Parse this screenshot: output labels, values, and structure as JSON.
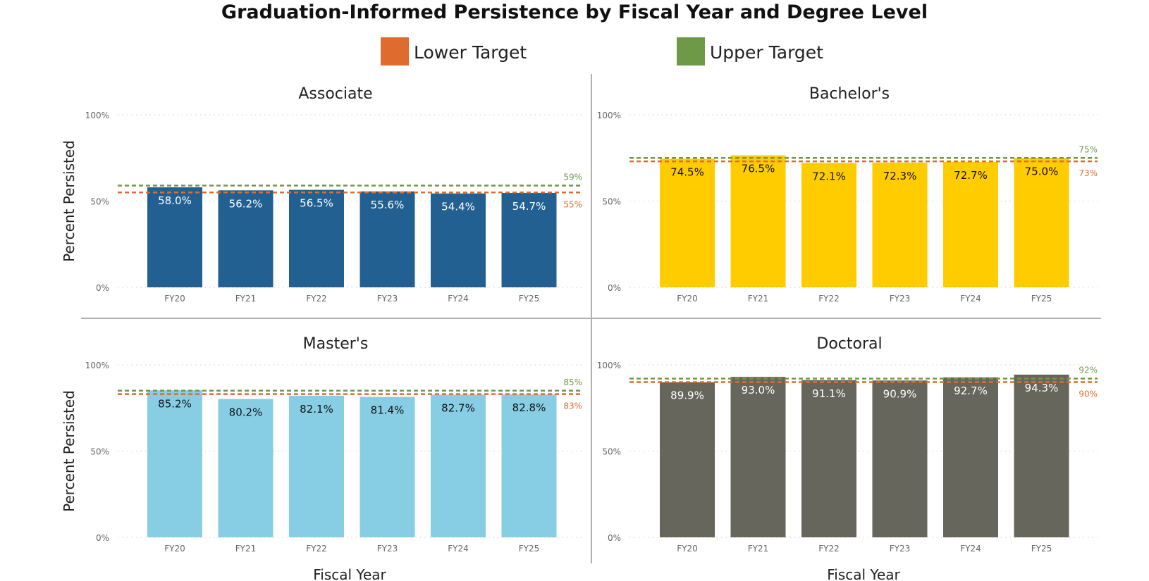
{
  "chart_data": [
    {
      "type": "bar",
      "title": "Associate",
      "categories": [
        "FY20",
        "FY21",
        "FY22",
        "FY23",
        "FY24",
        "FY25"
      ],
      "values": [
        58.0,
        56.2,
        56.5,
        55.6,
        54.4,
        54.7
      ],
      "labels": [
        "58.0%",
        "56.2%",
        "56.5%",
        "55.6%",
        "54.4%",
        "54.7%"
      ],
      "bar_color": "#236092",
      "label_color": "#ffffff",
      "lower_target": 55,
      "upper_target": 59,
      "lower_label": "55%",
      "upper_label": "59%",
      "ylabel": "Percent Persisted",
      "xlabel": "",
      "ylim": [
        0,
        100
      ],
      "yticks": [
        "0%",
        "50%",
        "100%"
      ],
      "grid": true
    },
    {
      "type": "bar",
      "title": "Bachelor's",
      "categories": [
        "FY20",
        "FY21",
        "FY22",
        "FY23",
        "FY24",
        "FY25"
      ],
      "values": [
        74.5,
        76.5,
        72.1,
        72.3,
        72.7,
        75.0
      ],
      "labels": [
        "74.5%",
        "76.5%",
        "72.1%",
        "72.3%",
        "72.7%",
        "75.0%"
      ],
      "bar_color": "#FFCC00",
      "label_color": "#111111",
      "lower_target": 73,
      "upper_target": 75,
      "lower_label": "73%",
      "upper_label": "75%",
      "ylabel": "",
      "xlabel": "",
      "ylim": [
        0,
        100
      ],
      "yticks": [
        "0%",
        "50%",
        "100%"
      ],
      "grid": true
    },
    {
      "type": "bar",
      "title": "Master's",
      "categories": [
        "FY20",
        "FY21",
        "FY22",
        "FY23",
        "FY24",
        "FY25"
      ],
      "values": [
        85.2,
        80.2,
        82.1,
        81.4,
        82.7,
        82.8
      ],
      "labels": [
        "85.2%",
        "80.2%",
        "82.1%",
        "81.4%",
        "82.7%",
        "82.8%"
      ],
      "bar_color": "#87CEE4",
      "label_color": "#111111",
      "lower_target": 83,
      "upper_target": 85,
      "lower_label": "83%",
      "upper_label": "85%",
      "ylabel": "Percent Persisted",
      "xlabel": "Fiscal Year",
      "ylim": [
        0,
        100
      ],
      "yticks": [
        "0%",
        "50%",
        "100%"
      ],
      "grid": true
    },
    {
      "type": "bar",
      "title": "Doctoral",
      "categories": [
        "FY20",
        "FY21",
        "FY22",
        "FY23",
        "FY24",
        "FY25"
      ],
      "values": [
        89.9,
        93.0,
        91.1,
        90.9,
        92.7,
        94.3
      ],
      "labels": [
        "89.9%",
        "93.0%",
        "91.1%",
        "90.9%",
        "92.7%",
        "94.3%"
      ],
      "bar_color": "#66665C",
      "label_color": "#ffffff",
      "lower_target": 90,
      "upper_target": 92,
      "lower_label": "90%",
      "upper_label": "92%",
      "ylabel": "",
      "xlabel": "Fiscal Year",
      "ylim": [
        0,
        100
      ],
      "yticks": [
        "0%",
        "50%",
        "100%"
      ],
      "grid": true
    }
  ],
  "title": "Graduation-Informed Persistence by Fiscal Year and Degree Level",
  "legend": {
    "placement": "top-center",
    "items": [
      {
        "label": "Lower Target",
        "color": "#E06B2E"
      },
      {
        "label": "Upper Target",
        "color": "#6E9A47"
      }
    ]
  }
}
